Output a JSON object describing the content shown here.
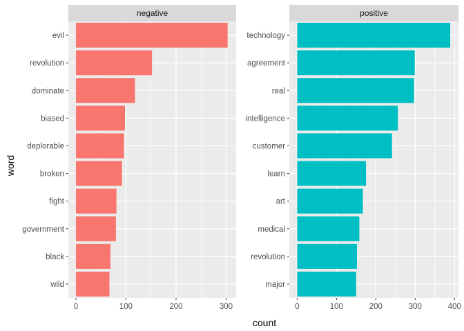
{
  "chart_data": {
    "type": "bar",
    "orientation": "horizontal",
    "xlabel": "count",
    "ylabel": "word",
    "grid": true,
    "panels": [
      {
        "facet": "negative",
        "color": "#F8766D",
        "xlim": [
          -15,
          320
        ],
        "xticks": [
          0,
          100,
          200,
          300
        ],
        "categories": [
          "evil",
          "revolution",
          "dominate",
          "biased",
          "deplorable",
          "broken",
          "fight",
          "government",
          "black",
          "wild"
        ],
        "values": [
          303,
          152,
          118,
          98,
          96,
          92,
          81,
          80,
          69,
          67
        ]
      },
      {
        "facet": "positive",
        "color": "#00BFC4",
        "xlim": [
          -20,
          410
        ],
        "xticks": [
          0,
          100,
          200,
          300,
          400
        ],
        "categories": [
          "technology",
          "agreement",
          "real",
          "intelligence",
          "customer",
          "learn",
          "art",
          "medical",
          "revolution",
          "major"
        ],
        "values": [
          389,
          299,
          297,
          256,
          241,
          175,
          167,
          158,
          152,
          150
        ]
      }
    ]
  }
}
